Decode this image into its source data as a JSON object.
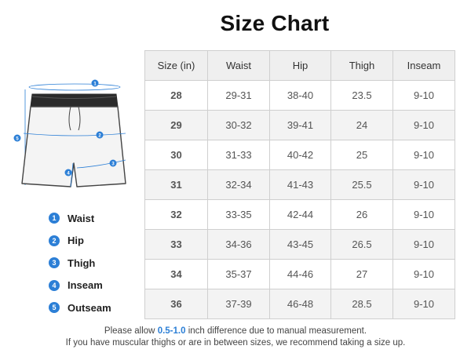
{
  "title": "Size Chart",
  "table": {
    "headers": [
      "Size (in)",
      "Waist",
      "Hip",
      "Thigh",
      "Inseam"
    ],
    "rows": [
      [
        "28",
        "29-31",
        "38-40",
        "23.5",
        "9-10"
      ],
      [
        "29",
        "30-32",
        "39-41",
        "24",
        "9-10"
      ],
      [
        "30",
        "31-33",
        "40-42",
        "25",
        "9-10"
      ],
      [
        "31",
        "32-34",
        "41-43",
        "25.5",
        "9-10"
      ],
      [
        "32",
        "33-35",
        "42-44",
        "26",
        "9-10"
      ],
      [
        "33",
        "34-36",
        "43-45",
        "26.5",
        "9-10"
      ],
      [
        "34",
        "35-37",
        "44-46",
        "27",
        "9-10"
      ],
      [
        "36",
        "37-39",
        "46-48",
        "28.5",
        "9-10"
      ]
    ]
  },
  "diagram": {
    "icon": "shorts-outline-icon",
    "markers": [
      "1",
      "2",
      "3",
      "4",
      "5"
    ],
    "accent_color": "#2c7fd6"
  },
  "legend": [
    {
      "num": "1",
      "label": "Waist"
    },
    {
      "num": "2",
      "label": "Hip"
    },
    {
      "num": "3",
      "label": "Thigh"
    },
    {
      "num": "4",
      "label": "Inseam"
    },
    {
      "num": "5",
      "label": "Outseam"
    }
  ],
  "notes": {
    "line1_prefix": "Please allow ",
    "line1_highlight": "0.5-1.0",
    "line1_suffix": " inch difference due to manual measurement.",
    "line2": "If you have muscular thighs or are in between sizes, we recommend taking a size up."
  }
}
